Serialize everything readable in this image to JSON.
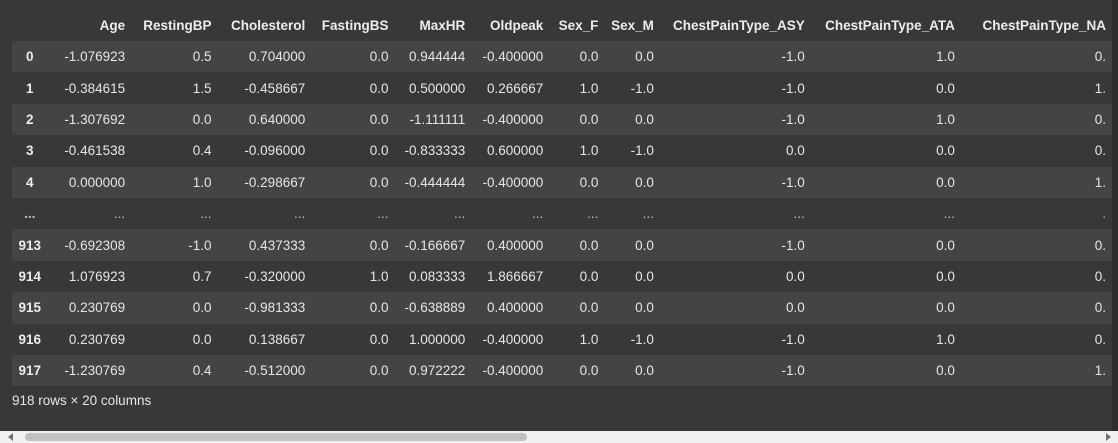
{
  "table": {
    "columns": [
      "",
      "Age",
      "RestingBP",
      "Cholesterol",
      "FastingBS",
      "MaxHR",
      "Oldpeak",
      "Sex_F",
      "Sex_M",
      "ChestPainType_ASY",
      "ChestPainType_ATA",
      "ChestPainType_NA"
    ],
    "rows": [
      [
        "0",
        "-1.076923",
        "0.5",
        "0.704000",
        "0.0",
        "0.944444",
        "-0.400000",
        "0.0",
        "0.0",
        "-1.0",
        "1.0",
        "0."
      ],
      [
        "1",
        "-0.384615",
        "1.5",
        "-0.458667",
        "0.0",
        "0.500000",
        "0.266667",
        "1.0",
        "-1.0",
        "-1.0",
        "0.0",
        "1."
      ],
      [
        "2",
        "-1.307692",
        "0.0",
        "0.640000",
        "0.0",
        "-1.111111",
        "-0.400000",
        "0.0",
        "0.0",
        "-1.0",
        "1.0",
        "0."
      ],
      [
        "3",
        "-0.461538",
        "0.4",
        "-0.096000",
        "0.0",
        "-0.833333",
        "0.600000",
        "1.0",
        "-1.0",
        "0.0",
        "0.0",
        "0."
      ],
      [
        "4",
        "0.000000",
        "1.0",
        "-0.298667",
        "0.0",
        "-0.444444",
        "-0.400000",
        "0.0",
        "0.0",
        "-1.0",
        "0.0",
        "1."
      ],
      [
        "...",
        "...",
        "...",
        "...",
        "...",
        "...",
        "...",
        "...",
        "...",
        "...",
        "...",
        "."
      ],
      [
        "913",
        "-0.692308",
        "-1.0",
        "0.437333",
        "0.0",
        "-0.166667",
        "0.400000",
        "0.0",
        "0.0",
        "-1.0",
        "0.0",
        "0."
      ],
      [
        "914",
        "1.076923",
        "0.7",
        "-0.320000",
        "1.0",
        "0.083333",
        "1.866667",
        "0.0",
        "0.0",
        "0.0",
        "0.0",
        "0."
      ],
      [
        "915",
        "0.230769",
        "0.0",
        "-0.981333",
        "0.0",
        "-0.638889",
        "0.400000",
        "0.0",
        "0.0",
        "0.0",
        "0.0",
        "0."
      ],
      [
        "916",
        "0.230769",
        "0.0",
        "0.138667",
        "0.0",
        "1.000000",
        "-0.400000",
        "1.0",
        "-1.0",
        "-1.0",
        "1.0",
        "0."
      ],
      [
        "917",
        "-1.230769",
        "0.4",
        "-0.512000",
        "0.0",
        "0.972222",
        "-0.400000",
        "0.0",
        "0.0",
        "-1.0",
        "0.0",
        "1."
      ]
    ]
  },
  "footer": {
    "shape_text": "918 rows × 20 columns"
  },
  "colors": {
    "background": "#383838",
    "row_alt": "#444444",
    "text": "#e6e6e6",
    "scrollbar_track": "#f1f1f1",
    "scrollbar_thumb": "#c1c1c1"
  },
  "icons": {
    "scroll_left": "arrow-left-icon",
    "scroll_right": "arrow-right-icon"
  }
}
